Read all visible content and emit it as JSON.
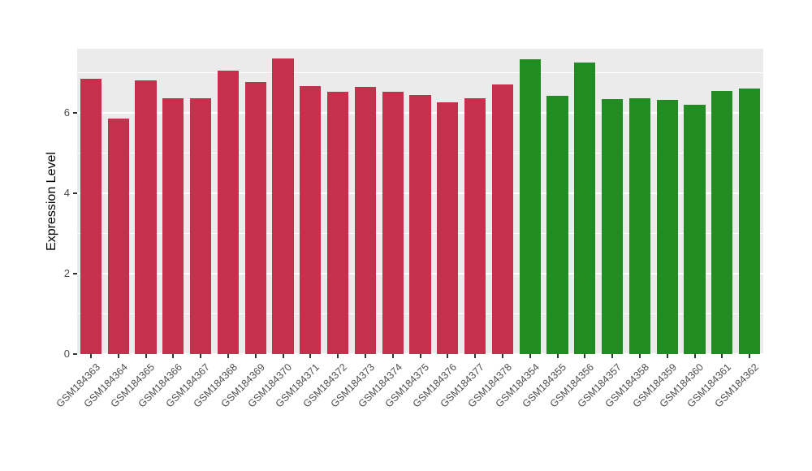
{
  "chart_data": {
    "type": "bar",
    "title": "",
    "xlabel": "",
    "ylabel": "Expression Level",
    "ylim": [
      0,
      7.6
    ],
    "yticks": [
      0,
      2,
      4,
      6
    ],
    "grid": "on",
    "legend": "none",
    "panel_bg": "#EBEBEB",
    "grid_color": "#FFFFFF",
    "group_colors": {
      "group1": "#C5304D",
      "group2": "#228B22"
    },
    "categories": [
      "GSM184363",
      "GSM184364",
      "GSM184365",
      "GSM184366",
      "GSM184367",
      "GSM184368",
      "GSM184369",
      "GSM184370",
      "GSM184371",
      "GSM184372",
      "GSM184373",
      "GSM184374",
      "GSM184375",
      "GSM184376",
      "GSM184377",
      "GSM184378",
      "GSM184354",
      "GSM184355",
      "GSM184356",
      "GSM184357",
      "GSM184358",
      "GSM184359",
      "GSM184360",
      "GSM184361",
      "GSM184362"
    ],
    "values": [
      6.85,
      5.87,
      6.82,
      6.37,
      6.37,
      7.05,
      6.78,
      7.35,
      6.68,
      6.53,
      6.65,
      6.53,
      6.45,
      6.27,
      6.37,
      6.72,
      7.33,
      6.42,
      7.25,
      6.35,
      6.37,
      6.33,
      6.2,
      6.55,
      6.6
    ],
    "bar_colors": [
      "#C5304D",
      "#C5304D",
      "#C5304D",
      "#C5304D",
      "#C5304D",
      "#C5304D",
      "#C5304D",
      "#C5304D",
      "#C5304D",
      "#C5304D",
      "#C5304D",
      "#C5304D",
      "#C5304D",
      "#C5304D",
      "#C5304D",
      "#C5304D",
      "#228B22",
      "#228B22",
      "#228B22",
      "#228B22",
      "#228B22",
      "#228B22",
      "#228B22",
      "#228B22",
      "#228B22"
    ]
  }
}
